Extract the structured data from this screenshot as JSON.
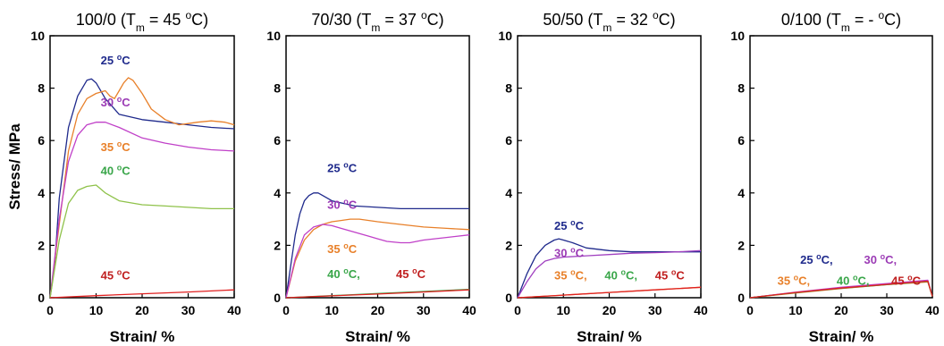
{
  "chart_data": [
    {
      "type": "line",
      "title": "100/0 (T",
      "title_sub": "m",
      "title_rest": " = 45 ",
      "title_sup": "o",
      "title_end": "C)",
      "xlabel": "Strain/ %",
      "ylabel": "Stress/ MPa",
      "xlim": [
        0,
        40
      ],
      "ylim": [
        0,
        10
      ],
      "x_ticks": [
        "0",
        "10",
        "20",
        "30",
        "40"
      ],
      "y_ticks": [
        "0",
        "2",
        "4",
        "6",
        "8",
        "10"
      ],
      "series": [
        {
          "color": "#1f2a8c",
          "x": [
            0,
            1,
            2,
            4,
            6,
            8,
            9,
            10,
            12,
            15,
            20,
            25,
            30,
            35,
            40
          ],
          "y": [
            0,
            1.2,
            3.8,
            6.5,
            7.7,
            8.3,
            8.35,
            8.2,
            7.6,
            7.0,
            6.8,
            6.7,
            6.6,
            6.5,
            6.45
          ]
        },
        {
          "color": "#e8802a",
          "x": [
            0,
            2,
            4,
            6,
            8,
            10,
            12,
            13,
            14,
            15,
            16,
            17,
            18,
            20,
            22,
            25,
            28,
            30,
            32,
            35,
            38,
            40
          ],
          "y": [
            0,
            2.8,
            5.6,
            7.0,
            7.6,
            7.8,
            7.9,
            7.7,
            7.6,
            7.9,
            8.2,
            8.4,
            8.3,
            7.8,
            7.2,
            6.8,
            6.6,
            6.65,
            6.7,
            6.75,
            6.7,
            6.6
          ]
        },
        {
          "color": "#c040c8",
          "x": [
            0,
            2,
            4,
            6,
            8,
            10,
            12,
            15,
            20,
            25,
            30,
            35,
            40
          ],
          "y": [
            0,
            3.0,
            5.2,
            6.2,
            6.6,
            6.7,
            6.7,
            6.5,
            6.1,
            5.9,
            5.75,
            5.65,
            5.6
          ]
        },
        {
          "color": "#8fc24a",
          "x": [
            0,
            2,
            4,
            6,
            8,
            10,
            12,
            15,
            20,
            25,
            30,
            35,
            40
          ],
          "y": [
            0,
            2.2,
            3.6,
            4.1,
            4.25,
            4.3,
            4.0,
            3.7,
            3.55,
            3.5,
            3.45,
            3.4,
            3.4
          ]
        },
        {
          "color": "#e02020",
          "x": [
            0,
            10,
            20,
            30,
            40
          ],
          "y": [
            0,
            0.08,
            0.15,
            0.22,
            0.3
          ]
        }
      ],
      "annotations": [
        {
          "label": "25 ",
          "sup": "o",
          "unit": "C",
          "color": "#1f2a8c",
          "x": 11,
          "y": 8.9
        },
        {
          "label": "30 ",
          "sup": "o",
          "unit": "C",
          "color": "#9b3bb5",
          "x": 11,
          "y": 7.3
        },
        {
          "label": "35 ",
          "sup": "o",
          "unit": "C",
          "color": "#e8802a",
          "x": 11,
          "y": 5.6
        },
        {
          "label": "40 ",
          "sup": "o",
          "unit": "C",
          "color": "#3aa64a",
          "x": 11,
          "y": 4.7
        },
        {
          "label": "45 ",
          "sup": "o",
          "unit": "C",
          "color": "#c02020",
          "x": 11,
          "y": 0.7
        }
      ]
    },
    {
      "type": "line",
      "title": "70/30 (T",
      "title_sub": "m",
      "title_rest": " = 37 ",
      "title_sup": "o",
      "title_end": "C)",
      "xlabel": "Strain/ %",
      "ylabel": "",
      "xlim": [
        0,
        40
      ],
      "ylim": [
        0,
        10
      ],
      "x_ticks": [
        "0",
        "10",
        "20",
        "30",
        "40"
      ],
      "y_ticks": [
        "0",
        "2",
        "4",
        "6",
        "8",
        "10"
      ],
      "series": [
        {
          "color": "#1f2a8c",
          "x": [
            0,
            1,
            2,
            3,
            4,
            5,
            6,
            7,
            8,
            10,
            15,
            20,
            25,
            30,
            35,
            40
          ],
          "y": [
            0,
            1.2,
            2.4,
            3.2,
            3.7,
            3.9,
            4.0,
            4.0,
            3.9,
            3.7,
            3.5,
            3.45,
            3.4,
            3.4,
            3.4,
            3.4
          ]
        },
        {
          "color": "#e8802a",
          "x": [
            0,
            2,
            4,
            6,
            8,
            10,
            12,
            14,
            16,
            20,
            25,
            30,
            35,
            40
          ],
          "y": [
            0,
            1.4,
            2.2,
            2.6,
            2.8,
            2.9,
            2.95,
            3.0,
            3.0,
            2.9,
            2.8,
            2.7,
            2.65,
            2.6
          ]
        },
        {
          "color": "#c040c8",
          "x": [
            0,
            2,
            4,
            6,
            8,
            10,
            12,
            15,
            18,
            20,
            22,
            25,
            27,
            30,
            35,
            40
          ],
          "y": [
            0,
            1.5,
            2.4,
            2.7,
            2.8,
            2.75,
            2.65,
            2.5,
            2.35,
            2.25,
            2.15,
            2.1,
            2.1,
            2.2,
            2.3,
            2.4
          ]
        },
        {
          "color": "#3aa64a",
          "x": [
            0,
            10,
            20,
            30,
            40
          ],
          "y": [
            0,
            0.08,
            0.16,
            0.24,
            0.32
          ]
        },
        {
          "color": "#e02020",
          "x": [
            0,
            10,
            20,
            30,
            40
          ],
          "y": [
            0,
            0.07,
            0.14,
            0.22,
            0.3
          ]
        }
      ],
      "annotations": [
        {
          "label": "25 ",
          "sup": "o",
          "unit": "C",
          "color": "#1f2a8c",
          "x": 9,
          "y": 4.8
        },
        {
          "label": "30 ",
          "sup": "o",
          "unit": "C",
          "color": "#9b3bb5",
          "x": 9,
          "y": 3.4
        },
        {
          "label": "35 ",
          "sup": "o",
          "unit": "C",
          "color": "#e8802a",
          "x": 9,
          "y": 1.7
        },
        {
          "label": "40 ",
          "sup": "o",
          "unit": "C, ",
          "color": "#3aa64a",
          "x": 9,
          "y": 0.75
        },
        {
          "label": "45 ",
          "sup": "o",
          "unit": "C",
          "color": "#c02020",
          "x": 24,
          "y": 0.75
        }
      ]
    },
    {
      "type": "line",
      "title": "50/50 (T",
      "title_sub": "m",
      "title_rest": " = 32 ",
      "title_sup": "o",
      "title_end": "C)",
      "xlabel": "Strain/ %",
      "ylabel": "",
      "xlim": [
        0,
        40
      ],
      "ylim": [
        0,
        10
      ],
      "x_ticks": [
        "0",
        "10",
        "20",
        "30",
        "40"
      ],
      "y_ticks": [
        "0",
        "2",
        "4",
        "6",
        "8",
        "10"
      ],
      "series": [
        {
          "color": "#1f2a8c",
          "x": [
            0,
            2,
            4,
            6,
            8,
            9,
            10,
            12,
            15,
            20,
            25,
            30,
            35,
            40
          ],
          "y": [
            0,
            0.9,
            1.6,
            2.0,
            2.2,
            2.25,
            2.2,
            2.1,
            1.9,
            1.8,
            1.75,
            1.75,
            1.75,
            1.75
          ]
        },
        {
          "color": "#a040c0",
          "x": [
            0,
            2,
            4,
            6,
            8,
            10,
            15,
            20,
            25,
            30,
            35,
            40
          ],
          "y": [
            0,
            0.6,
            1.1,
            1.4,
            1.5,
            1.55,
            1.6,
            1.65,
            1.7,
            1.72,
            1.75,
            1.8
          ]
        },
        {
          "color": "#e8802a",
          "x": [
            0,
            10,
            20,
            30,
            40
          ],
          "y": [
            0,
            0.1,
            0.2,
            0.3,
            0.4
          ]
        },
        {
          "color": "#e02020",
          "x": [
            0,
            10,
            20,
            30,
            40
          ],
          "y": [
            0,
            0.1,
            0.2,
            0.3,
            0.4
          ]
        }
      ],
      "annotations": [
        {
          "label": "25 ",
          "sup": "o",
          "unit": "C",
          "color": "#1f2a8c",
          "x": 8,
          "y": 2.6
        },
        {
          "label": "30 ",
          "sup": "o",
          "unit": "C",
          "color": "#9b3bb5",
          "x": 8,
          "y": 1.55
        },
        {
          "label": "35 ",
          "sup": "o",
          "unit": "C, ",
          "color": "#e8802a",
          "x": 8,
          "y": 0.7
        },
        {
          "label": "40 ",
          "sup": "o",
          "unit": "C, ",
          "color": "#3aa64a",
          "x": 19,
          "y": 0.7
        },
        {
          "label": "45 ",
          "sup": "o",
          "unit": "C",
          "color": "#c02020",
          "x": 30,
          "y": 0.7
        }
      ]
    },
    {
      "type": "line",
      "title": "0/100 (T",
      "title_sub": "m",
      "title_rest": " = - ",
      "title_sup": "o",
      "title_end": "C)",
      "xlabel": "Strain/ %",
      "ylabel": "",
      "xlim": [
        0,
        40
      ],
      "ylim": [
        0,
        10
      ],
      "x_ticks": [
        "0",
        "10",
        "20",
        "30",
        "40"
      ],
      "y_ticks": [
        "0",
        "2",
        "4",
        "6",
        "8",
        "10"
      ],
      "series": [
        {
          "color": "#1f2a8c",
          "x": [
            0,
            10,
            20,
            30,
            39,
            40
          ],
          "y": [
            0,
            0.2,
            0.38,
            0.52,
            0.65,
            0.05
          ]
        },
        {
          "color": "#c040c8",
          "x": [
            0,
            10,
            20,
            30,
            39,
            40
          ],
          "y": [
            0,
            0.21,
            0.4,
            0.54,
            0.67,
            0.05
          ]
        },
        {
          "color": "#e8802a",
          "x": [
            0,
            10,
            20,
            30,
            39,
            40
          ],
          "y": [
            0,
            0.18,
            0.35,
            0.5,
            0.6,
            0.05
          ]
        },
        {
          "color": "#3aa64a",
          "x": [
            0,
            10,
            20,
            30,
            39,
            40
          ],
          "y": [
            0,
            0.19,
            0.36,
            0.5,
            0.62,
            0.05
          ]
        },
        {
          "color": "#e02020",
          "x": [
            0,
            10,
            20,
            30,
            39,
            40
          ],
          "y": [
            0,
            0.2,
            0.37,
            0.51,
            0.63,
            0.05
          ]
        }
      ],
      "annotations": [
        {
          "label": "25 ",
          "sup": "o",
          "unit": "C, ",
          "color": "#1f2a8c",
          "x": 11,
          "y": 1.3
        },
        {
          "label": "30 ",
          "sup": "o",
          "unit": "C,",
          "color": "#9b3bb5",
          "x": 25,
          "y": 1.3
        },
        {
          "label": "35 ",
          "sup": "o",
          "unit": "C, ",
          "color": "#e8802a",
          "x": 6,
          "y": 0.5
        },
        {
          "label": "40 ",
          "sup": "o",
          "unit": "C, ",
          "color": "#3aa64a",
          "x": 19,
          "y": 0.5
        },
        {
          "label": "45 ",
          "sup": "o",
          "unit": "C",
          "color": "#c02020",
          "x": 31,
          "y": 0.5
        }
      ]
    }
  ]
}
